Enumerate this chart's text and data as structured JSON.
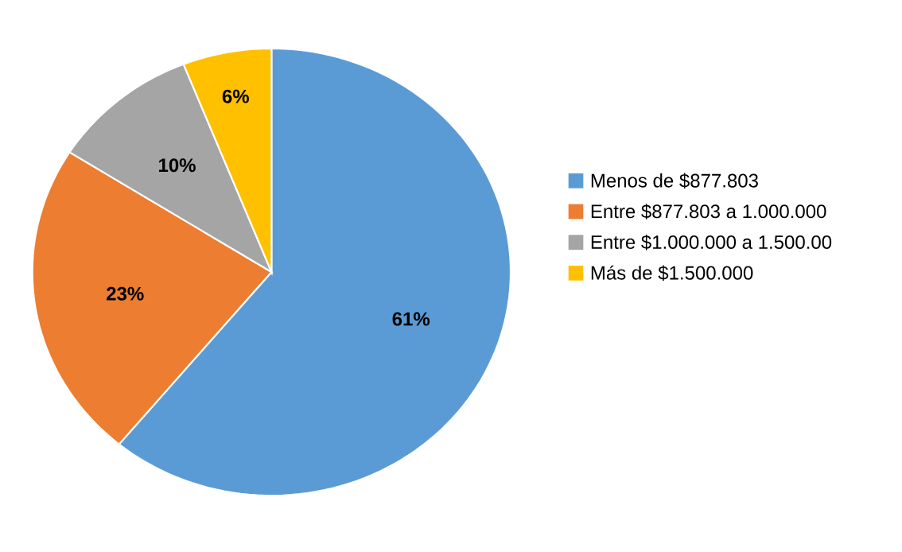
{
  "chart_data": {
    "type": "pie",
    "categories": [
      "Menos de $877.803",
      "Entre $877.803 a 1.000.000",
      "Entre $1.000.000 a 1.500.00",
      "Más de $1.500.000"
    ],
    "values": [
      61,
      23,
      10,
      6
    ],
    "value_labels": [
      "61%",
      "23%",
      "10%",
      "6%"
    ],
    "colors": [
      "#5b9bd5",
      "#ed7d31",
      "#a5a5a5",
      "#ffc000"
    ],
    "legend": "right"
  }
}
